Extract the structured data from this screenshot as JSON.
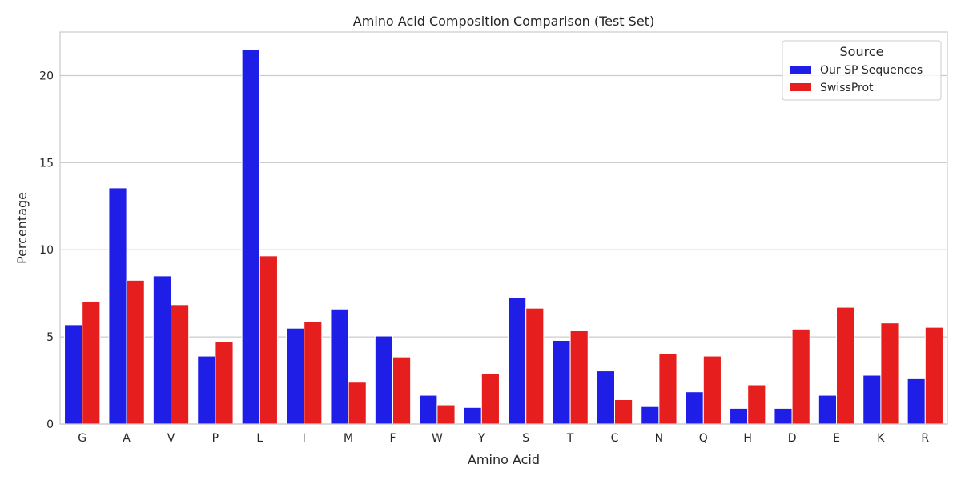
{
  "chart_data": {
    "type": "bar",
    "title": "Amino Acid Composition Comparison (Test Set)",
    "xlabel": "Amino Acid",
    "ylabel": "Percentage",
    "ylim": [
      0,
      22.5
    ],
    "yticks": [
      0,
      5,
      10,
      15,
      20
    ],
    "grid": true,
    "legend": {
      "title": "Source",
      "placement": "top-right"
    },
    "categories": [
      "G",
      "A",
      "V",
      "P",
      "L",
      "I",
      "M",
      "F",
      "W",
      "Y",
      "S",
      "T",
      "C",
      "N",
      "Q",
      "H",
      "D",
      "E",
      "K",
      "R"
    ],
    "series": [
      {
        "name": "Our SP Sequences",
        "color": "#1f1ee6",
        "values": [
          5.7,
          13.55,
          8.5,
          3.9,
          21.5,
          5.5,
          6.6,
          5.05,
          1.65,
          0.95,
          7.25,
          4.8,
          3.05,
          1.0,
          1.85,
          0.9,
          0.9,
          1.65,
          2.8,
          2.6
        ]
      },
      {
        "name": "SwissProt",
        "color": "#e61e1e",
        "values": [
          7.05,
          8.25,
          6.85,
          4.75,
          9.65,
          5.9,
          2.4,
          3.85,
          1.1,
          2.9,
          6.65,
          5.35,
          1.4,
          4.05,
          3.9,
          2.25,
          5.45,
          6.7,
          5.8,
          5.55
        ]
      }
    ]
  }
}
